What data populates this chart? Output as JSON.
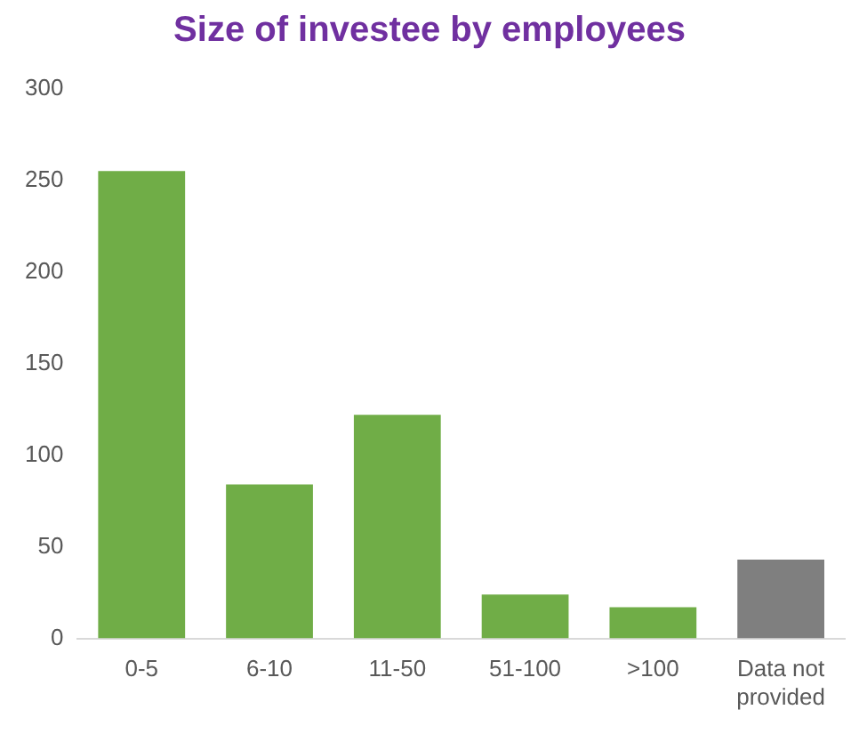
{
  "chart_data": {
    "type": "bar",
    "title": "Size of investee by employees",
    "categories": [
      "0-5",
      "6-10",
      "11-50",
      "51-100",
      ">100",
      "Data not provided"
    ],
    "values": [
      255,
      84,
      122,
      24,
      17,
      43
    ],
    "colors": [
      "#70ad47",
      "#70ad47",
      "#70ad47",
      "#70ad47",
      "#70ad47",
      "#7f7f7f"
    ],
    "ylim": [
      0,
      300
    ],
    "yticks": [
      0,
      50,
      100,
      150,
      200,
      250,
      300
    ],
    "grid": false
  }
}
